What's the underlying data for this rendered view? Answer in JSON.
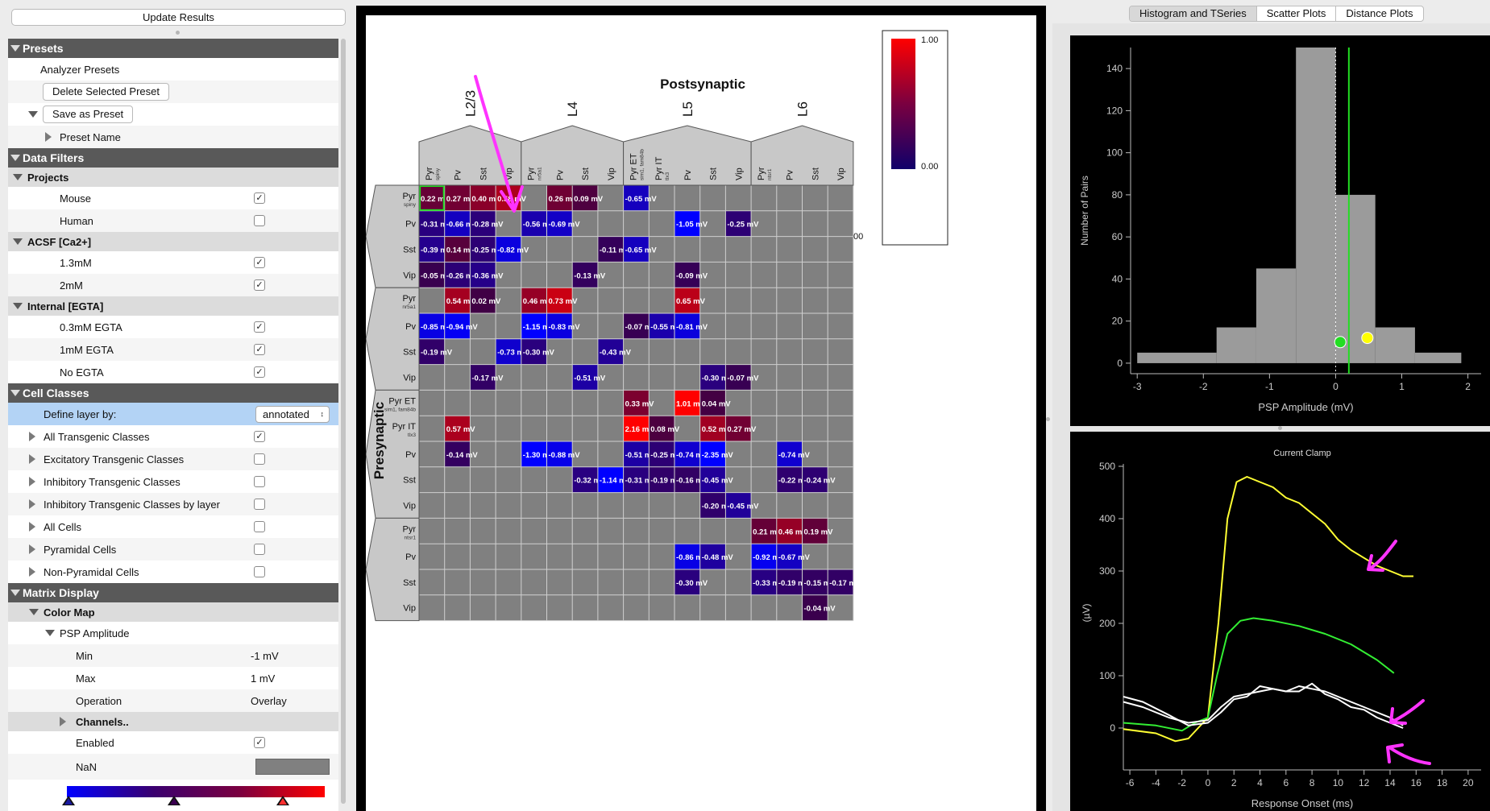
{
  "left_panel": {
    "update_button": "Update Results",
    "rows": [
      {
        "t": "sec",
        "label": "Presets",
        "tri": "down",
        "indent": 0
      },
      {
        "t": "row",
        "label": "Analyzer Presets",
        "indent": 40
      },
      {
        "t": "row",
        "button": "Delete Selected Preset",
        "indent": 43,
        "alt": true
      },
      {
        "t": "row",
        "button": "Save as Preset",
        "indent": 43,
        "tri": "down",
        "triIndent": 25
      },
      {
        "t": "row",
        "label": "Preset Name",
        "indent": 64,
        "tri": "right",
        "triIndent": 46,
        "alt": true
      },
      {
        "t": "sec",
        "label": "Data Filters",
        "tri": "down",
        "indent": 0
      },
      {
        "t": "sub",
        "label": "Projects",
        "tri": "down",
        "indent": 24
      },
      {
        "t": "row",
        "label": "Mouse",
        "indent": 64,
        "check": true
      },
      {
        "t": "row",
        "label": "Human",
        "indent": 64,
        "check": false,
        "alt": true
      },
      {
        "t": "sub",
        "label": "ACSF [Ca2+]",
        "tri": "down",
        "indent": 24
      },
      {
        "t": "row",
        "label": "1.3mM",
        "indent": 64,
        "check": true
      },
      {
        "t": "row",
        "label": "2mM",
        "indent": 64,
        "check": true,
        "alt": true
      },
      {
        "t": "sub",
        "label": "Internal [EGTA]",
        "tri": "down",
        "indent": 24
      },
      {
        "t": "row",
        "label": "0.3mM EGTA",
        "indent": 64,
        "check": true
      },
      {
        "t": "row",
        "label": "1mM EGTA",
        "indent": 64,
        "check": true,
        "alt": true
      },
      {
        "t": "row",
        "label": "No EGTA",
        "indent": 64,
        "check": true
      },
      {
        "t": "sec",
        "label": "Cell Classes",
        "tri": "down",
        "indent": 0
      },
      {
        "t": "row",
        "label": "Define layer by:",
        "indent": 44,
        "select": "annotated",
        "sel": true
      },
      {
        "t": "row",
        "label": "All Transgenic Classes",
        "indent": 44,
        "tri": "right",
        "triIndent": 26,
        "check": true
      },
      {
        "t": "row",
        "label": "Excitatory Transgenic Classes",
        "indent": 44,
        "tri": "right",
        "triIndent": 26,
        "check": false,
        "alt": true
      },
      {
        "t": "row",
        "label": "Inhibitory Transgenic Classes",
        "indent": 44,
        "tri": "right",
        "triIndent": 26,
        "check": false
      },
      {
        "t": "row",
        "label": "Inhibitory Transgenic Classes by layer",
        "indent": 44,
        "tri": "right",
        "triIndent": 26,
        "check": false,
        "alt": true
      },
      {
        "t": "row",
        "label": "All Cells",
        "indent": 44,
        "tri": "right",
        "triIndent": 26,
        "check": false
      },
      {
        "t": "row",
        "label": "Pyramidal Cells",
        "indent": 44,
        "tri": "right",
        "triIndent": 26,
        "check": false,
        "alt": true
      },
      {
        "t": "row",
        "label": "Non-Pyramidal Cells",
        "indent": 44,
        "tri": "right",
        "triIndent": 26,
        "check": false
      },
      {
        "t": "sec",
        "label": "Matrix Display",
        "tri": "down",
        "indent": 0
      },
      {
        "t": "sub",
        "label": "Color Map",
        "tri": "down",
        "indent": 44
      },
      {
        "t": "row",
        "label": "PSP Amplitude",
        "indent": 64,
        "tri": "down",
        "triIndent": 46
      },
      {
        "t": "row",
        "label": "Min",
        "indent": 84,
        "value": "-1 mV",
        "alt": true
      },
      {
        "t": "row",
        "label": "Max",
        "indent": 84,
        "value": "1 mV"
      },
      {
        "t": "row",
        "label": "Operation",
        "indent": 84,
        "value": "Overlay",
        "alt": true
      },
      {
        "t": "sub",
        "label": "Channels..",
        "tri": "right",
        "triIndent": 64,
        "indent": 84
      },
      {
        "t": "row",
        "label": "Enabled",
        "indent": 84,
        "check": true
      },
      {
        "t": "row",
        "label": "NaN",
        "indent": 84,
        "nan": true,
        "tall": true,
        "alt": true
      },
      {
        "t": "grad"
      }
    ]
  },
  "matrix": {
    "post_title": "Postsynaptic",
    "pre_title": "Presynaptic",
    "layers": [
      "L2/3",
      "L4",
      "L5",
      "L6"
    ],
    "col_labels": [
      {
        "main": "Pyr",
        "sub": "spiny"
      },
      {
        "main": "Pv"
      },
      {
        "main": "Sst"
      },
      {
        "main": "Vip"
      },
      {
        "main": "Pyr",
        "sub": "nr5a1"
      },
      {
        "main": "Pv"
      },
      {
        "main": "Sst"
      },
      {
        "main": "Vip"
      },
      {
        "main": "Pyr ET",
        "sub": "sim1, fam84b"
      },
      {
        "main": "Pyr IT",
        "sub": "tlx3"
      },
      {
        "main": "Pv"
      },
      {
        "main": "Sst"
      },
      {
        "main": "Vip"
      },
      {
        "main": "Pyr",
        "sub": "ntsr1"
      },
      {
        "main": "Pv"
      },
      {
        "main": "Sst"
      },
      {
        "main": "Vip"
      }
    ],
    "row_labels": [
      {
        "main": "Pyr",
        "sub": "spiny"
      },
      {
        "main": "Pv"
      },
      {
        "main": "Sst"
      },
      {
        "main": "Vip"
      },
      {
        "main": "Pyr",
        "sub": "nr5a1"
      },
      {
        "main": "Pv"
      },
      {
        "main": "Sst"
      },
      {
        "main": "Vip"
      },
      {
        "main": "Pyr ET",
        "sub": "sim1, fam84b"
      },
      {
        "main": "Pyr IT",
        "sub": "tlx3"
      },
      {
        "main": "Pv"
      },
      {
        "main": "Sst"
      },
      {
        "main": "Vip"
      },
      {
        "main": "Pyr",
        "sub": "ntsr1"
      },
      {
        "main": "Pv"
      },
      {
        "main": "Sst"
      },
      {
        "main": "Vip"
      }
    ],
    "cells": [
      [
        0,
        0,
        "0.22 mV",
        0.22
      ],
      [
        0,
        1,
        "0.27 mV",
        0.27
      ],
      [
        0,
        2,
        "0.40 mV",
        0.4
      ],
      [
        0,
        3,
        "0.58 mV",
        0.58
      ],
      [
        0,
        5,
        "0.26 mV",
        0.26
      ],
      [
        0,
        6,
        "0.09 mV",
        0.09
      ],
      [
        0,
        8,
        "-0.65 mV",
        -0.65
      ],
      [
        1,
        0,
        "-0.31 mV",
        -0.31
      ],
      [
        1,
        1,
        "-0.66 mV",
        -0.66
      ],
      [
        1,
        2,
        "-0.28 mV",
        -0.28
      ],
      [
        1,
        4,
        "-0.56 mV",
        -0.56
      ],
      [
        1,
        5,
        "-0.69 mV",
        -0.69
      ],
      [
        1,
        10,
        "-1.05 mV",
        -1.05
      ],
      [
        1,
        12,
        "-0.25 mV",
        -0.25
      ],
      [
        2,
        0,
        "-0.39 mV",
        -0.39
      ],
      [
        2,
        1,
        "0.14 mV",
        0.14
      ],
      [
        2,
        2,
        "-0.25 mV",
        -0.25
      ],
      [
        2,
        3,
        "-0.82 mV",
        -0.82
      ],
      [
        2,
        7,
        "-0.11 mV",
        -0.11
      ],
      [
        2,
        8,
        "-0.65 mV",
        -0.65
      ],
      [
        3,
        0,
        "-0.05 mV",
        -0.05
      ],
      [
        3,
        1,
        "-0.26 mV",
        -0.26
      ],
      [
        3,
        2,
        "-0.36 mV",
        -0.36
      ],
      [
        3,
        6,
        "-0.13 mV",
        -0.13
      ],
      [
        3,
        10,
        "-0.09 mV",
        -0.09
      ],
      [
        4,
        1,
        "0.54 mV",
        0.54
      ],
      [
        4,
        2,
        "0.02 mV",
        0.02
      ],
      [
        4,
        4,
        "0.46 mV",
        0.46
      ],
      [
        4,
        5,
        "0.73 mV",
        0.73
      ],
      [
        4,
        10,
        "0.65 mV",
        0.65
      ],
      [
        5,
        0,
        "-0.85 mV",
        -0.85
      ],
      [
        5,
        1,
        "-0.94 mV",
        -0.94
      ],
      [
        5,
        4,
        "-1.15 mV",
        -1.15
      ],
      [
        5,
        5,
        "-0.83 mV",
        -0.83
      ],
      [
        5,
        8,
        "-0.07 mV",
        -0.07
      ],
      [
        5,
        9,
        "-0.55 mV",
        -0.55
      ],
      [
        5,
        10,
        "-0.81 mV",
        -0.81
      ],
      [
        6,
        0,
        "-0.19 mV",
        -0.19
      ],
      [
        6,
        3,
        "-0.73 mV",
        -0.73
      ],
      [
        6,
        4,
        "-0.30 mV",
        -0.3
      ],
      [
        6,
        7,
        "-0.43 mV",
        -0.43
      ],
      [
        7,
        2,
        "-0.17 mV",
        -0.17
      ],
      [
        7,
        6,
        "-0.51 mV",
        -0.51
      ],
      [
        7,
        11,
        "-0.30 mV",
        -0.3
      ],
      [
        7,
        12,
        "-0.07 mV",
        -0.07
      ],
      [
        8,
        8,
        "0.33 mV",
        0.33
      ],
      [
        8,
        10,
        "1.01 mV",
        1.01
      ],
      [
        8,
        11,
        "0.04 mV",
        0.04
      ],
      [
        9,
        1,
        "0.57 mV",
        0.57
      ],
      [
        9,
        8,
        "2.16 mV",
        2.16
      ],
      [
        9,
        9,
        "0.08 mV",
        0.08
      ],
      [
        9,
        11,
        "0.52 mV",
        0.52
      ],
      [
        9,
        12,
        "0.27 mV",
        0.27
      ],
      [
        10,
        1,
        "-0.14 mV",
        -0.14
      ],
      [
        10,
        4,
        "-1.30 mV",
        -1.3
      ],
      [
        10,
        5,
        "-0.88 mV",
        -0.88
      ],
      [
        10,
        8,
        "-0.51 mV",
        -0.51
      ],
      [
        10,
        9,
        "-0.25 mV",
        -0.25
      ],
      [
        10,
        10,
        "-0.74 mV",
        -0.74
      ],
      [
        10,
        11,
        "-2.35 mV",
        -2.35
      ],
      [
        10,
        14,
        "-0.74 mV",
        -0.74
      ],
      [
        11,
        6,
        "-0.32 mV",
        -0.32
      ],
      [
        11,
        7,
        "-1.14 mV",
        -1.14
      ],
      [
        11,
        8,
        "-0.31 mV",
        -0.31
      ],
      [
        11,
        9,
        "-0.19 mV",
        -0.19
      ],
      [
        11,
        10,
        "-0.16 mV",
        -0.16
      ],
      [
        11,
        11,
        "-0.45 mV",
        -0.45
      ],
      [
        11,
        14,
        "-0.22 mV",
        -0.22
      ],
      [
        11,
        15,
        "-0.24 mV",
        -0.24
      ],
      [
        12,
        11,
        "-0.20 mV",
        -0.2
      ],
      [
        12,
        12,
        "-0.45 mV",
        -0.45
      ],
      [
        13,
        13,
        "0.21 mV",
        0.21
      ],
      [
        13,
        14,
        "0.46 mV",
        0.46
      ],
      [
        13,
        15,
        "0.19 mV",
        0.19
      ],
      [
        14,
        10,
        "-0.86 mV",
        -0.86
      ],
      [
        14,
        11,
        "-0.48 mV",
        -0.48
      ],
      [
        14,
        13,
        "-0.92 mV",
        -0.92
      ],
      [
        14,
        14,
        "-0.67 mV",
        -0.67
      ],
      [
        15,
        10,
        "-0.30 mV",
        -0.3
      ],
      [
        15,
        13,
        "-0.33 mV",
        -0.33
      ],
      [
        15,
        14,
        "-0.19 mV",
        -0.19
      ],
      [
        15,
        15,
        "-0.15 mV",
        -0.15
      ],
      [
        15,
        16,
        "-0.17 mV",
        -0.17
      ],
      [
        16,
        15,
        "-0.04 mV",
        -0.04
      ]
    ],
    "selected_cell": [
      0,
      0
    ],
    "legend_top": "1.00",
    "legend_bottom": "0.00",
    "legend_stub": "00"
  },
  "tabs": [
    {
      "label": "Histogram and TSeries",
      "active": true
    },
    {
      "label": "Scatter Plots",
      "active": false
    },
    {
      "label": "Distance Plots",
      "active": false
    }
  ],
  "chart_data": [
    {
      "type": "bar",
      "xlabel": "PSP Amplitude (mV)",
      "ylabel": "Number of Pairs",
      "xlim": [
        -3.1,
        2.2
      ],
      "ylim": [
        -5,
        150
      ],
      "x_ticks": [
        -3,
        -2,
        -1,
        0,
        1,
        2
      ],
      "y_ticks": [
        0,
        20,
        40,
        60,
        80,
        100,
        120,
        140
      ],
      "bins": [
        {
          "x0": -3.0,
          "x1": -1.8,
          "count": 5
        },
        {
          "x0": -1.8,
          "x1": -1.2,
          "count": 17
        },
        {
          "x0": -1.2,
          "x1": -0.6,
          "count": 45
        },
        {
          "x0": -0.6,
          "x1": 0.0,
          "count": 150
        },
        {
          "x0": 0.0,
          "x1": 0.6,
          "count": 80
        },
        {
          "x0": 0.6,
          "x1": 1.2,
          "count": 17
        },
        {
          "x0": 1.2,
          "x1": 1.9,
          "count": 5
        }
      ],
      "vline": 0.2,
      "zero_line": 0.0,
      "markers": [
        {
          "x": 0.07,
          "y": 10,
          "color": "#22dd22"
        },
        {
          "x": 0.48,
          "y": 12,
          "color": "#ffff00"
        }
      ]
    },
    {
      "type": "line",
      "title": "Current Clamp",
      "xlabel": "Response Onset (ms)",
      "ylabel": "(µV)",
      "xlim": [
        -6.5,
        21
      ],
      "ylim": [
        -80,
        520
      ],
      "x_ticks": [
        -6,
        -4,
        -2,
        0,
        2,
        4,
        6,
        8,
        10,
        12,
        14,
        16,
        18,
        20
      ],
      "y_ticks": [
        0,
        100,
        200,
        300,
        400,
        500
      ],
      "series": [
        {
          "color": "#ffff33",
          "x": [
            -6.5,
            -4,
            -2.5,
            -1.5,
            0,
            0.8,
            1.5,
            2.2,
            3,
            4,
            5,
            6,
            7,
            8,
            9,
            10,
            11,
            12,
            13,
            14,
            15,
            15.8
          ],
          "y": [
            -2,
            -10,
            -25,
            -20,
            20,
            200,
            400,
            470,
            480,
            470,
            460,
            440,
            430,
            410,
            390,
            360,
            340,
            325,
            310,
            300,
            290,
            290
          ]
        },
        {
          "color": "#33ee33",
          "x": [
            -6.5,
            -4,
            -2,
            -1,
            0,
            0.7,
            1.5,
            2.5,
            3.5,
            5,
            7,
            9,
            11,
            13,
            14.3
          ],
          "y": [
            10,
            5,
            -5,
            10,
            20,
            100,
            180,
            205,
            210,
            205,
            195,
            180,
            160,
            130,
            105
          ]
        },
        {
          "color": "#ffffff",
          "x": [
            -6.5,
            -5,
            -3,
            -1.5,
            0,
            1,
            2,
            3,
            4,
            5,
            6,
            7,
            8,
            9,
            10,
            11,
            12,
            13,
            14,
            15
          ],
          "y": [
            50,
            40,
            20,
            10,
            15,
            40,
            60,
            65,
            70,
            75,
            70,
            80,
            75,
            70,
            60,
            50,
            40,
            30,
            20,
            5
          ]
        },
        {
          "color": "#ffffff",
          "x": [
            -6.5,
            -5,
            -3,
            -1.5,
            0,
            1,
            2,
            3,
            4,
            5,
            6,
            7,
            8,
            9,
            10,
            11,
            12,
            13,
            14,
            15
          ],
          "y": [
            60,
            50,
            25,
            5,
            10,
            30,
            55,
            60,
            80,
            75,
            70,
            70,
            85,
            65,
            55,
            40,
            35,
            20,
            10,
            0
          ]
        }
      ]
    }
  ]
}
